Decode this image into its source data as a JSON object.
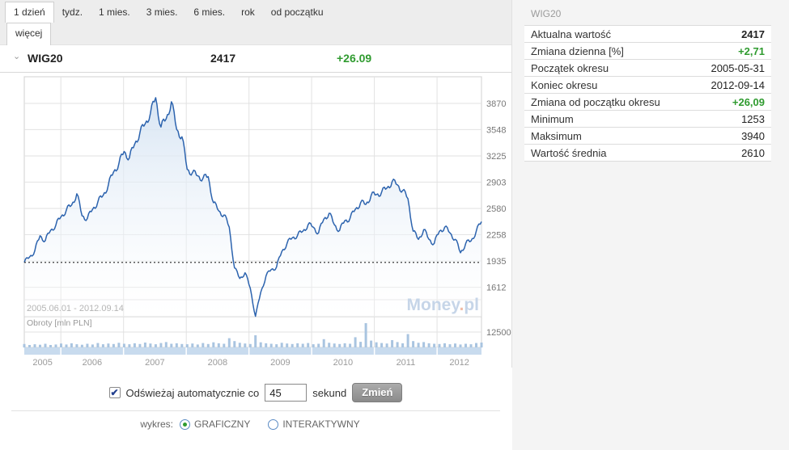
{
  "tabs": {
    "row1": [
      {
        "label": "1 dzień",
        "active": true
      },
      {
        "label": "tydz.",
        "active": false
      },
      {
        "label": "1 mies.",
        "active": false
      },
      {
        "label": "3 mies.",
        "active": false
      },
      {
        "label": "6 mies.",
        "active": false
      },
      {
        "label": "rok",
        "active": false
      },
      {
        "label": "od początku",
        "active": false
      }
    ],
    "row2": [
      {
        "label": "więcej",
        "active": true
      }
    ]
  },
  "chart_header": {
    "instrument": "WIG20",
    "value": "2417",
    "change": "+26.09"
  },
  "icons": {
    "chevron_down": "⌄",
    "checkbox_check": "✔"
  },
  "chart_data": {
    "type": "line",
    "title": "WIG20",
    "period_label": "2005.06.01 - 2012.09.14",
    "watermark": "Money.pl",
    "x_start_year_decimal": 2005.417,
    "x_end_year_decimal": 2012.708,
    "x_ticks": [
      "2005",
      "2006",
      "2007",
      "2008",
      "2009",
      "2010",
      "2011",
      "2012"
    ],
    "y_ticks": [
      3870,
      3548,
      3225,
      2903,
      2580,
      2258,
      1935,
      1612
    ],
    "baseline_value": 1917,
    "min": 1253,
    "max": 3940,
    "series": [
      {
        "name": "WIG20",
        "values": [
          1917,
          1983,
          2060,
          2245,
          2185,
          2310,
          2375,
          2480,
          2560,
          2620,
          2760,
          2490,
          2456,
          2570,
          2660,
          2740,
          2870,
          3030,
          3130,
          3280,
          3200,
          3370,
          3510,
          3620,
          3750,
          3940,
          3580,
          3680,
          3890,
          3550,
          3460,
          3060,
          3020,
          2980,
          2950,
          2970,
          2650,
          2550,
          2500,
          2350,
          1850,
          1720,
          1790,
          1600,
          1253,
          1550,
          1750,
          1830,
          1860,
          2050,
          2150,
          2220,
          2250,
          2300,
          2380,
          2350,
          2280,
          2450,
          2520,
          2380,
          2310,
          2430,
          2460,
          2570,
          2650,
          2630,
          2740,
          2750,
          2780,
          2830,
          2910,
          2870,
          2800,
          2700,
          2300,
          2200,
          2320,
          2200,
          2150,
          2300,
          2350,
          2280,
          2200,
          2035,
          2150,
          2180,
          2300,
          2417
        ]
      }
    ],
    "volume": {
      "label": "Obroty [mln PLN]",
      "axis_label": "12500,",
      "values": [
        14,
        10,
        13,
        11,
        15,
        10,
        12,
        16,
        12,
        17,
        13,
        11,
        15,
        12,
        18,
        13,
        16,
        14,
        19,
        15,
        13,
        17,
        14,
        20,
        16,
        13,
        18,
        22,
        15,
        17,
        14,
        13,
        16,
        12,
        18,
        14,
        21,
        17,
        15,
        38,
        26,
        19,
        16,
        14,
        50,
        21,
        17,
        15,
        13,
        19,
        16,
        14,
        17,
        15,
        18,
        13,
        15,
        34,
        19,
        16,
        14,
        17,
        15,
        42,
        23,
        100,
        28,
        21,
        18,
        16,
        30,
        22,
        17,
        55,
        26,
        19,
        22,
        17,
        15,
        14,
        17,
        13,
        16,
        12,
        15,
        13,
        18,
        20
      ]
    }
  },
  "controls": {
    "checkbox_checked": true,
    "refresh_label_before": "Odświeżaj automatycznie co",
    "refresh_value": "45",
    "refresh_label_after": "sekund",
    "change_button": "Zmień"
  },
  "chart_type": {
    "label": "wykres:",
    "options": [
      {
        "label": "GRAFICZNY",
        "selected": true
      },
      {
        "label": "INTERAKTYWNY",
        "selected": false
      }
    ]
  },
  "side_panel": {
    "title": "WIG20",
    "rows": [
      {
        "label": "Aktualna wartość",
        "value": "2417",
        "style": "bold"
      },
      {
        "label": "Zmiana dzienna [%]",
        "value": "+2,71",
        "style": "green"
      },
      {
        "label": "Początek okresu",
        "value": "2005-05-31",
        "style": "plain"
      },
      {
        "label": "Koniec okresu",
        "value": "2012-09-14",
        "style": "plain"
      },
      {
        "label": "Zmiana od początku okresu",
        "value": "+26,09",
        "style": "green"
      },
      {
        "label": "Minimum",
        "value": "1253",
        "style": "plain"
      },
      {
        "label": "Maksimum",
        "value": "3940",
        "style": "plain"
      },
      {
        "label": "Wartość średnia",
        "value": "2610",
        "style": "plain"
      }
    ]
  },
  "colors": {
    "accent_green": "#2f9b2f",
    "line_blue": "#2c63ae",
    "area_top": "#d3e2f2",
    "volume_bar": "#a9c4e0",
    "axis_band": "#c8dbee",
    "watermark_blue": "#c6d5e8",
    "watermark_dot": "#f0bca6",
    "grid": "#e2e2e2"
  }
}
